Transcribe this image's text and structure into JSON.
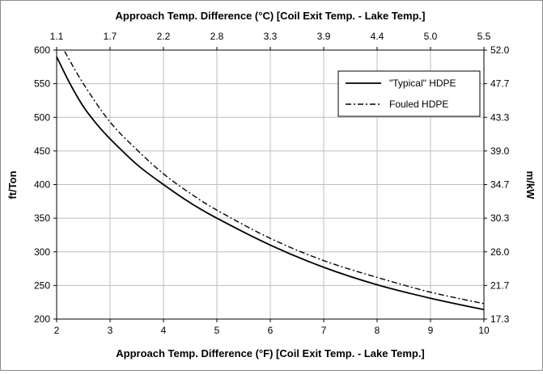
{
  "chart_data": {
    "type": "line",
    "title": "",
    "xlabel": "Approach Temp. Difference (°F) [Coil Exit Temp. - Lake Temp.]",
    "x2label": "Approach Temp. Difference (°C) [Coil Exit Temp. - Lake Temp.]",
    "ylabel": "ft/Ton",
    "y2label": "m/kW",
    "xlim": [
      2,
      10
    ],
    "ylim": [
      200,
      600
    ],
    "grid": true,
    "legend_position": "top-right",
    "x_ticks": [
      "2",
      "3",
      "4",
      "5",
      "6",
      "7",
      "8",
      "9",
      "10"
    ],
    "y_ticks": [
      "200",
      "250",
      "300",
      "350",
      "400",
      "450",
      "500",
      "550",
      "600"
    ],
    "x2_ticks": [
      "1.1",
      "1.7",
      "2.2",
      "2.8",
      "3.3",
      "3.9",
      "4.4",
      "5.0",
      "5.5"
    ],
    "y2_ticks": [
      "17.3",
      "21.7",
      "26.0",
      "30.3",
      "34.7",
      "39.0",
      "43.3",
      "47.7",
      "52.0"
    ],
    "series": [
      {
        "name": "\"Typical\" HDPE",
        "style": "solid",
        "color": "#000000",
        "x": [
          2.0,
          2.25,
          2.5,
          2.75,
          3.0,
          3.5,
          4.0,
          4.5,
          5.0,
          6.0,
          7.0,
          8.0,
          9.0,
          10.0
        ],
        "y": [
          590,
          550,
          516,
          490,
          468,
          430,
          400,
          373,
          350,
          310,
          277,
          251,
          231,
          214
        ]
      },
      {
        "name": "Fouled HDPE",
        "style": "dash-dot",
        "color": "#000000",
        "x": [
          2.15,
          2.5,
          3.0,
          3.5,
          4.0,
          4.5,
          5.0,
          6.0,
          7.0,
          8.0,
          9.0,
          10.0
        ],
        "y": [
          598,
          550,
          493,
          452,
          416,
          387,
          362,
          320,
          287,
          262,
          240,
          223
        ]
      }
    ]
  }
}
